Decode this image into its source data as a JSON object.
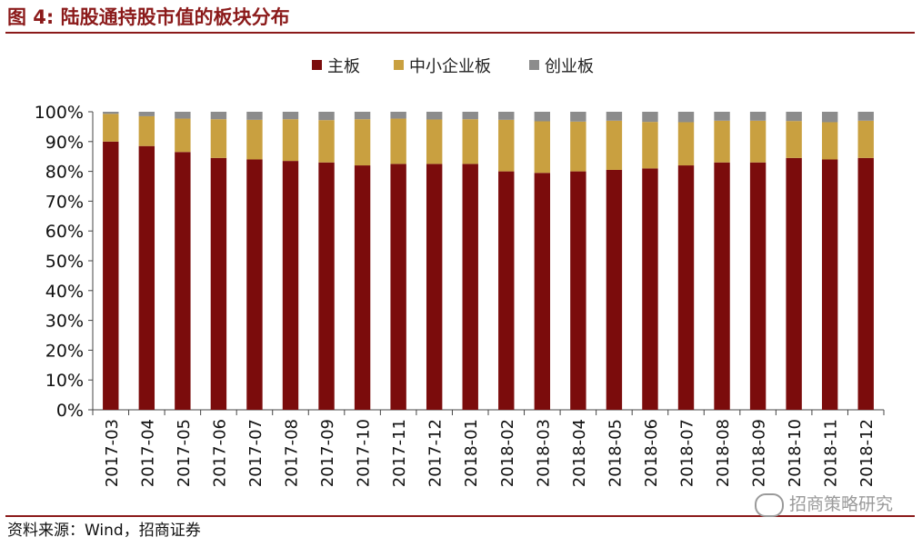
{
  "figure": {
    "title": "图 4:  陆股通持股市值的板块分布",
    "source": "资料来源：Wind，招商证券",
    "watermark": "招商策略研究"
  },
  "colors": {
    "main_board": "#7B0C0C",
    "sme_board": "#C9A040",
    "chinext_board": "#8C8C8C",
    "accent": "#8B1A1A"
  },
  "chart_data": {
    "type": "bar",
    "stacked": true,
    "percent": true,
    "title": "",
    "xlabel": "",
    "ylabel": "",
    "ylim": [
      0,
      100
    ],
    "yticks": [
      "0%",
      "10%",
      "20%",
      "30%",
      "40%",
      "50%",
      "60%",
      "70%",
      "80%",
      "90%",
      "100%"
    ],
    "legend_position": "top-center",
    "categories": [
      "2017-03",
      "2017-04",
      "2017-05",
      "2017-06",
      "2017-07",
      "2017-08",
      "2017-09",
      "2017-10",
      "2017-11",
      "2017-12",
      "2018-01",
      "2018-02",
      "2018-03",
      "2018-04",
      "2018-05",
      "2018-06",
      "2018-07",
      "2018-08",
      "2018-09",
      "2018-10",
      "2018-11",
      "2018-12"
    ],
    "series": [
      {
        "name": "主板",
        "color": "#7B0C0C",
        "values": [
          90,
          88.5,
          86.5,
          84.5,
          84,
          83.5,
          83,
          82,
          82.5,
          82.5,
          82.5,
          80,
          79.5,
          80,
          80.5,
          81,
          82,
          83,
          83,
          84.5,
          84,
          84.5
        ]
      },
      {
        "name": "中小企业板",
        "color": "#C9A040",
        "values": [
          9.3,
          10,
          11.2,
          13,
          13.3,
          14,
          14.2,
          15.5,
          15.2,
          14.9,
          15,
          17.3,
          17.3,
          16.7,
          16.5,
          15.6,
          14.5,
          14,
          14,
          12.4,
          12.5,
          12.5
        ]
      },
      {
        "name": "创业板",
        "color": "#8C8C8C",
        "values": [
          0.7,
          1.5,
          2.3,
          2.5,
          2.7,
          2.5,
          2.8,
          2.5,
          2.3,
          2.6,
          2.5,
          2.7,
          3.2,
          3.3,
          3,
          3.4,
          3.5,
          3,
          3,
          3.1,
          3.5,
          3
        ]
      }
    ]
  }
}
